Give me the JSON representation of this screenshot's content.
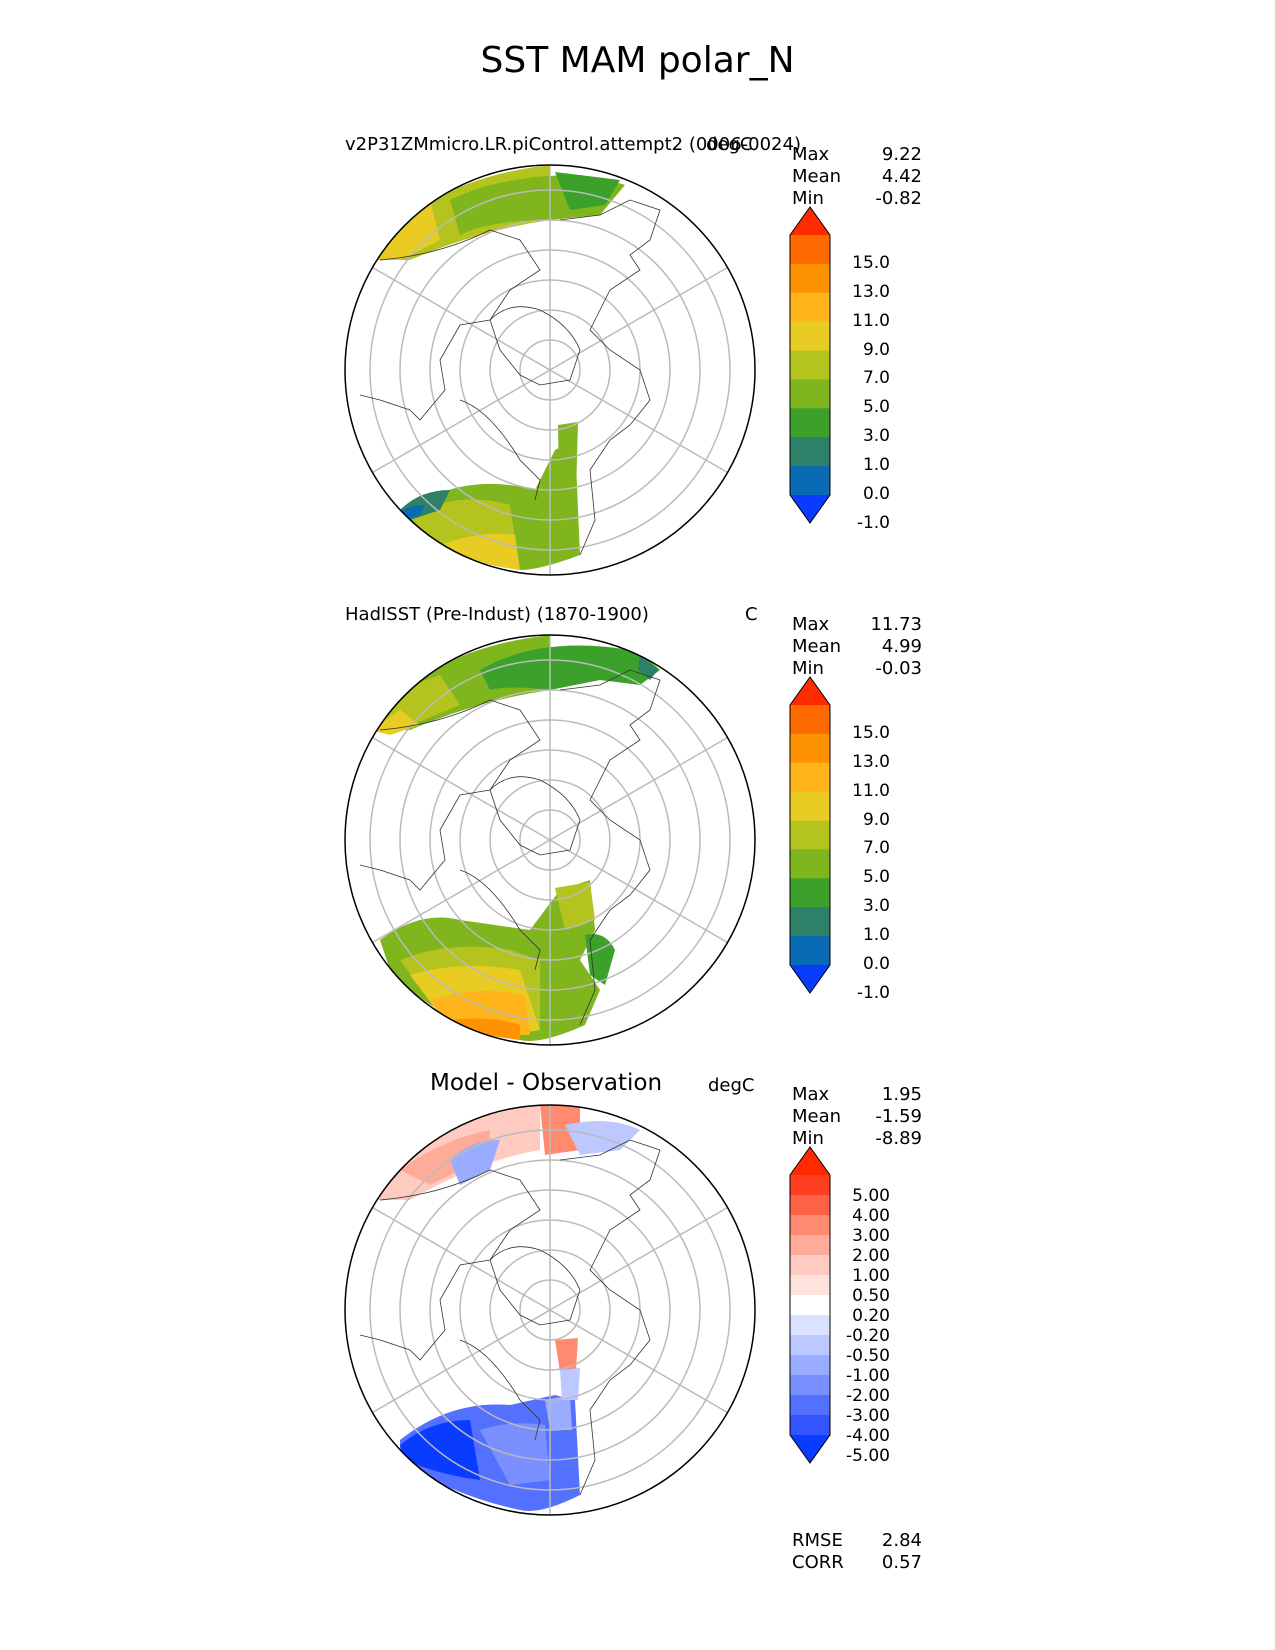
{
  "figure_title": "SST MAM polar_N",
  "panels": [
    {
      "title_left": "v2P31ZMmicro.LR.piControl.attempt2 (0006-0024)",
      "units": "degC",
      "stats": {
        "max_label": "Max",
        "max": "9.22",
        "mean_label": "Mean",
        "mean": "4.42",
        "min_label": "Min",
        "min": "-0.82"
      },
      "colorbar": {
        "labels": [
          "15.0",
          "13.0",
          "11.0",
          "9.0",
          "7.0",
          "5.0",
          "3.0",
          "1.0",
          "0.0",
          "-1.0"
        ],
        "colors": [
          "#ff2a00",
          "#ff6a00",
          "#ff9200",
          "#ffb41c",
          "#e8cc23",
          "#b5c31e",
          "#7fb51d",
          "#3ca12a",
          "#2e8068",
          "#0a6bb5",
          "#0a3cff"
        ]
      }
    },
    {
      "title_left": "HadISST (Pre-Indust) (1870-1900)",
      "units": "C",
      "stats": {
        "max_label": "Max",
        "max": "11.73",
        "mean_label": "Mean",
        "mean": "4.99",
        "min_label": "Min",
        "min": "-0.03"
      },
      "colorbar": {
        "labels": [
          "15.0",
          "13.0",
          "11.0",
          "9.0",
          "7.0",
          "5.0",
          "3.0",
          "1.0",
          "0.0",
          "-1.0"
        ],
        "colors": [
          "#ff2a00",
          "#ff6a00",
          "#ff9200",
          "#ffb41c",
          "#e8cc23",
          "#b5c31e",
          "#7fb51d",
          "#3ca12a",
          "#2e8068",
          "#0a6bb5",
          "#0a3cff"
        ]
      }
    },
    {
      "title_center": "Model - Observation",
      "units": "degC",
      "stats": {
        "max_label": "Max",
        "max": "1.95",
        "mean_label": "Mean",
        "mean": "-1.59",
        "min_label": "Min",
        "min": "-8.89"
      },
      "colorbar": {
        "labels": [
          "5.00",
          "4.00",
          "3.00",
          "2.00",
          "1.00",
          "0.50",
          "0.20",
          "-0.20",
          "-0.50",
          "-1.00",
          "-2.00",
          "-3.00",
          "-4.00",
          "-5.00"
        ],
        "colors": [
          "#ff2a00",
          "#ff3d1f",
          "#ff6347",
          "#ff8a70",
          "#ffab9a",
          "#ffcac0",
          "#ffe2dc",
          "#ffffff",
          "#dbe2ff",
          "#bcc8ff",
          "#9aacff",
          "#7a90ff",
          "#5470ff",
          "#3355ff",
          "#0a3cff"
        ]
      },
      "metrics": {
        "rmse_label": "RMSE",
        "rmse": "2.84",
        "corr_label": "CORR",
        "corr": "0.57"
      }
    }
  ],
  "chart_data": {
    "type": "polar_stereographic_contour",
    "title": "SST MAM polar_N",
    "variable": "SST",
    "season": "MAM",
    "region": "polar_N",
    "maps": [
      {
        "name": "model",
        "label": "v2P31ZMmicro.LR.piControl.attempt2 (0006-0024)",
        "units": "degC",
        "max": 9.22,
        "mean": 4.42,
        "min": -0.82,
        "levels": [
          -1.0,
          0.0,
          1.0,
          3.0,
          5.0,
          7.0,
          9.0,
          11.0,
          13.0,
          15.0
        ]
      },
      {
        "name": "observation",
        "label": "HadISST (Pre-Indust) (1870-1900)",
        "units": "C",
        "max": 11.73,
        "mean": 4.99,
        "min": -0.03,
        "levels": [
          -1.0,
          0.0,
          1.0,
          3.0,
          5.0,
          7.0,
          9.0,
          11.0,
          13.0,
          15.0
        ]
      },
      {
        "name": "difference",
        "label": "Model - Observation",
        "units": "degC",
        "max": 1.95,
        "mean": -1.59,
        "min": -8.89,
        "levels": [
          -5.0,
          -4.0,
          -3.0,
          -2.0,
          -1.0,
          -0.5,
          -0.2,
          0.2,
          0.5,
          1.0,
          2.0,
          3.0,
          4.0,
          5.0
        ],
        "rmse": 2.84,
        "corr": 0.57
      }
    ]
  }
}
